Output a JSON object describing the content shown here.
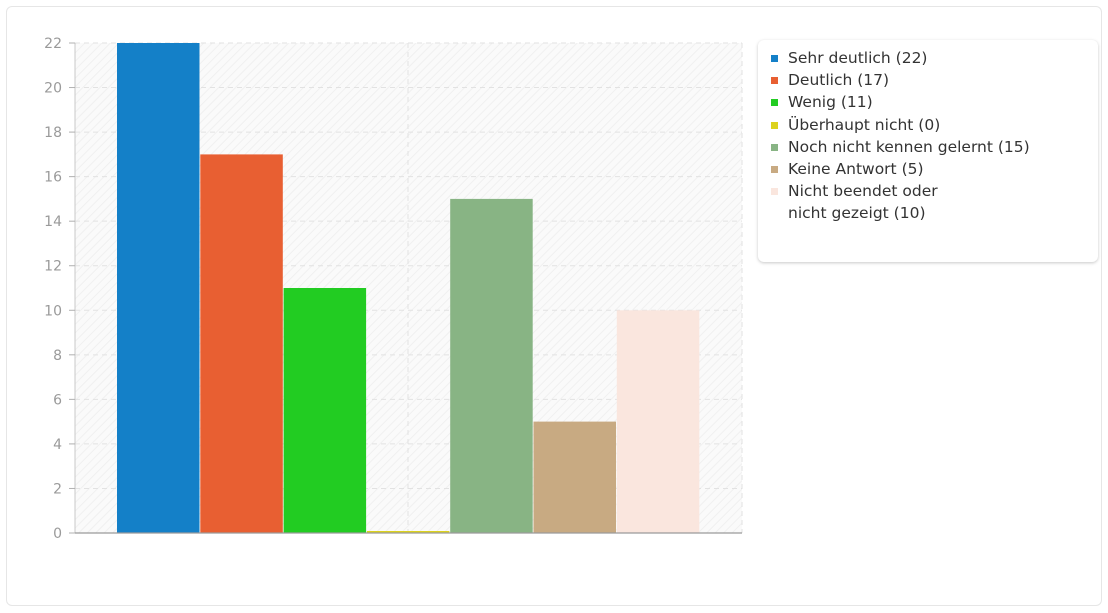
{
  "chart_data": {
    "type": "bar",
    "title": "",
    "xlabel": "",
    "ylabel": "",
    "ylim": [
      0,
      22
    ],
    "yticks": [
      0,
      2,
      4,
      6,
      8,
      10,
      12,
      14,
      16,
      18,
      20,
      22
    ],
    "grid": true,
    "legend_position": "right",
    "categories": [
      "Sehr deutlich",
      "Deutlich",
      "Wenig",
      "Überhaupt nicht",
      "Noch nicht kennen gelernt",
      "Keine Antwort",
      "Nicht beendet oder nicht gezeigt"
    ],
    "values": [
      22,
      17,
      11,
      0,
      15,
      5,
      10
    ],
    "colors": [
      "#1480c8",
      "#e85f32",
      "#22cc22",
      "#dcd21e",
      "#88b484",
      "#c8aa82",
      "#fae6de"
    ],
    "legend": [
      "Sehr deutlich (22)",
      "Deutlich (17)",
      "Wenig (11)",
      "Überhaupt nicht (0)",
      "Noch nicht kennen gelernt (15)",
      "Keine Antwort (5)",
      "Nicht beendet oder\nnicht gezeigt (10)"
    ]
  }
}
